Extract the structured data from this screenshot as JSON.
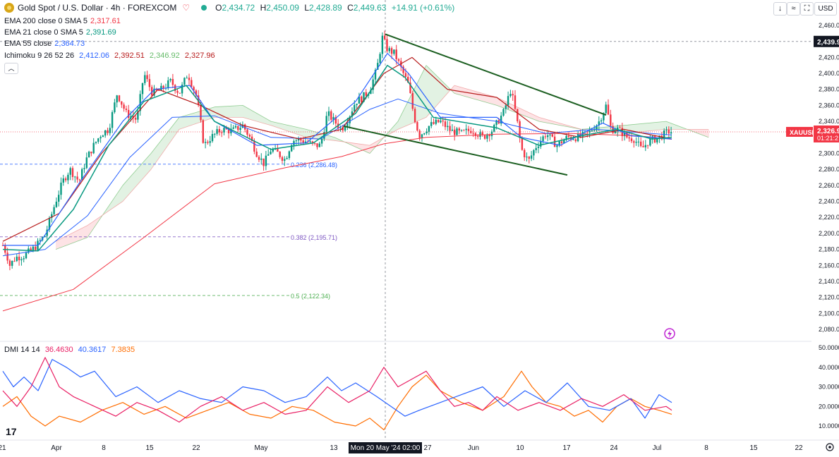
{
  "header": {
    "symbol": "Gold Spot / U.S. Dollar · 4h · FOREXCOM",
    "o_label": "O",
    "o": "2,434.72",
    "h_label": "H",
    "h": "2,450.09",
    "l_label": "L",
    "l": "2,428.89",
    "c_label": "C",
    "c": "2,449.63",
    "change": "+14.91 (+0.61%)"
  },
  "indicators": [
    {
      "label": "EMA 200 close 0 SMA 5",
      "value": "2,317.61",
      "color": "#f23645"
    },
    {
      "label": "EMA 21 close 0 SMA 5",
      "value": "2,391.69",
      "color": "#089981"
    },
    {
      "label": "EMA 55 close",
      "value": "2,364.73",
      "color": "#2962ff"
    },
    {
      "label": "Ichimoku 9 26 52 26",
      "values": [
        "2,412.06",
        "2,392.51",
        "2,346.92",
        "2,327.96"
      ],
      "colors": [
        "#2962ff",
        "#b71c1c",
        "#43a047",
        "#b71c1c"
      ]
    }
  ],
  "dmi": {
    "label": "DMI 14 14",
    "values": [
      "36.4630",
      "40.3617",
      "7.3835"
    ],
    "colors": [
      "#e91e63",
      "#2962ff",
      "#ff6d00"
    ]
  },
  "toolbar": {
    "down": "↓",
    "collapse": "≈",
    "fullscreen": "⛶",
    "currency": "USD"
  },
  "price_axis": {
    "labels": [
      "2,460.00",
      "2,440.00",
      "2,420.00",
      "2,400.00",
      "2,380.00",
      "2,360.00",
      "2,340.00",
      "2,320.00",
      "2,300.00",
      "2,280.00",
      "2,260.00",
      "2,240.00",
      "2,220.00",
      "2,200.00",
      "2,180.00",
      "2,160.00",
      "2,140.00",
      "2,120.00",
      "2,100.00",
      "2,080.00"
    ],
    "values": [
      2460,
      2440,
      2420,
      2400,
      2380,
      2360,
      2340,
      2320,
      2300,
      2280,
      2260,
      2240,
      2220,
      2200,
      2180,
      2160,
      2140,
      2120,
      2100,
      2080
    ],
    "crosshair_label": "2,439.9",
    "crosshair_value": 2439.9,
    "symbol_tag": "XAUUSD",
    "last_price": "2,326.9",
    "countdown": "01:21:2"
  },
  "dmi_axis": {
    "labels": [
      "50.0000",
      "40.0000",
      "30.0000",
      "20.0000",
      "10.0000"
    ],
    "values": [
      50,
      40,
      30,
      20,
      10
    ]
  },
  "time_axis": {
    "labels": [
      "21",
      "Apr",
      "8",
      "15",
      "22",
      "May",
      "13",
      "27",
      "Jun",
      "10",
      "17",
      "24",
      "Jul",
      "8",
      "15",
      "22"
    ],
    "bar_index": [
      -4,
      3,
      45,
      88,
      132,
      173,
      224,
      308,
      350,
      392,
      434,
      476,
      517,
      560,
      602,
      644
    ],
    "crosshair_label": "Mon 20 May '24   02:00",
    "crosshair_bar": 266
  },
  "chart_data": {
    "type": "candlestick",
    "bars_total": 290,
    "ylim": [
      2065,
      2470
    ],
    "path": [
      [
        0,
        2185
      ],
      [
        5,
        2175
      ],
      [
        10,
        2160
      ],
      [
        18,
        2170
      ],
      [
        30,
        2172
      ],
      [
        45,
        2182
      ],
      [
        60,
        2198
      ],
      [
        75,
        2240
      ],
      [
        85,
        2265
      ],
      [
        95,
        2280
      ],
      [
        108,
        2265
      ],
      [
        118,
        2292
      ],
      [
        130,
        2312
      ],
      [
        140,
        2325
      ],
      [
        150,
        2330
      ],
      [
        162,
        2375
      ],
      [
        175,
        2350
      ],
      [
        190,
        2342
      ],
      [
        200,
        2400
      ],
      [
        212,
        2375
      ],
      [
        225,
        2380
      ],
      [
        238,
        2390
      ],
      [
        250,
        2375
      ],
      [
        262,
        2400
      ],
      [
        275,
        2370
      ],
      [
        285,
        2310
      ],
      [
        295,
        2320
      ],
      [
        310,
        2330
      ],
      [
        325,
        2328
      ],
      [
        340,
        2335
      ],
      [
        350,
        2320
      ],
      [
        360,
        2300
      ],
      [
        370,
        2287
      ],
      [
        380,
        2305
      ],
      [
        390,
        2300
      ],
      [
        400,
        2292
      ],
      [
        410,
        2316
      ],
      [
        420,
        2317
      ],
      [
        430,
        2315
      ],
      [
        440,
        2310
      ],
      [
        450,
        2310
      ],
      [
        460,
        2350
      ],
      [
        470,
        2340
      ],
      [
        480,
        2330
      ],
      [
        490,
        2345
      ],
      [
        500,
        2365
      ],
      [
        510,
        2370
      ],
      [
        520,
        2380
      ],
      [
        530,
        2405
      ],
      [
        538,
        2445
      ],
      [
        545,
        2430
      ],
      [
        555,
        2425
      ],
      [
        565,
        2405
      ],
      [
        575,
        2385
      ],
      [
        582,
        2350
      ],
      [
        590,
        2322
      ],
      [
        605,
        2335
      ],
      [
        620,
        2340
      ],
      [
        635,
        2328
      ],
      [
        650,
        2325
      ],
      [
        665,
        2330
      ],
      [
        680,
        2320
      ],
      [
        695,
        2330
      ],
      [
        710,
        2352
      ],
      [
        720,
        2380
      ],
      [
        728,
        2345
      ],
      [
        735,
        2305
      ],
      [
        745,
        2290
      ],
      [
        755,
        2308
      ],
      [
        770,
        2325
      ],
      [
        785,
        2310
      ],
      [
        800,
        2320
      ],
      [
        815,
        2320
      ],
      [
        830,
        2325
      ],
      [
        845,
        2340
      ],
      [
        855,
        2360
      ],
      [
        862,
        2330
      ],
      [
        872,
        2330
      ],
      [
        885,
        2320
      ],
      [
        895,
        2318
      ],
      [
        905,
        2305
      ],
      [
        915,
        2315
      ],
      [
        930,
        2320
      ],
      [
        945,
        2328
      ],
      [
        948,
        2326.9
      ]
    ],
    "ema200": [
      [
        0,
        2103
      ],
      [
        100,
        2130
      ],
      [
        200,
        2195
      ],
      [
        300,
        2262
      ],
      [
        400,
        2282
      ],
      [
        480,
        2296
      ],
      [
        540,
        2312
      ],
      [
        600,
        2320
      ],
      [
        700,
        2324
      ],
      [
        800,
        2325
      ],
      [
        900,
        2322
      ],
      [
        948,
        2317.61
      ]
    ],
    "ema21": [
      [
        0,
        2180
      ],
      [
        50,
        2178
      ],
      [
        100,
        2230
      ],
      [
        150,
        2310
      ],
      [
        200,
        2365
      ],
      [
        260,
        2385
      ],
      [
        300,
        2340
      ],
      [
        380,
        2305
      ],
      [
        440,
        2313
      ],
      [
        500,
        2350
      ],
      [
        545,
        2410
      ],
      [
        570,
        2395
      ],
      [
        610,
        2345
      ],
      [
        700,
        2332
      ],
      [
        760,
        2310
      ],
      [
        820,
        2322
      ],
      [
        870,
        2330
      ],
      [
        920,
        2318
      ],
      [
        948,
        2320
      ]
    ],
    "ema55": [
      [
        0,
        2172
      ],
      [
        60,
        2180
      ],
      [
        120,
        2222
      ],
      [
        180,
        2295
      ],
      [
        240,
        2345
      ],
      [
        300,
        2347
      ],
      [
        380,
        2320
      ],
      [
        450,
        2318
      ],
      [
        520,
        2355
      ],
      [
        560,
        2368
      ],
      [
        620,
        2350
      ],
      [
        700,
        2340
      ],
      [
        770,
        2325
      ],
      [
        840,
        2330
      ],
      [
        948,
        2323
      ]
    ],
    "ichimoku_tenkan": [
      [
        0,
        2185
      ],
      [
        50,
        2185
      ],
      [
        110,
        2265
      ],
      [
        170,
        2340
      ],
      [
        215,
        2380
      ],
      [
        265,
        2385
      ],
      [
        300,
        2340
      ],
      [
        360,
        2310
      ],
      [
        430,
        2313
      ],
      [
        500,
        2365
      ],
      [
        545,
        2425
      ],
      [
        575,
        2400
      ],
      [
        620,
        2345
      ],
      [
        700,
        2345
      ],
      [
        735,
        2320
      ],
      [
        790,
        2310
      ],
      [
        850,
        2338
      ],
      [
        890,
        2322
      ],
      [
        948,
        2318
      ]
    ],
    "ichimoku_kijun": [
      [
        0,
        2190
      ],
      [
        80,
        2225
      ],
      [
        140,
        2300
      ],
      [
        180,
        2340
      ],
      [
        220,
        2380
      ],
      [
        280,
        2360
      ],
      [
        340,
        2335
      ],
      [
        420,
        2318
      ],
      [
        480,
        2330
      ],
      [
        540,
        2400
      ],
      [
        580,
        2420
      ],
      [
        630,
        2380
      ],
      [
        700,
        2370
      ],
      [
        760,
        2330
      ],
      [
        820,
        2320
      ],
      [
        880,
        2330
      ],
      [
        948,
        2318
      ]
    ],
    "ichimoku_span_a": [
      [
        75,
        2180
      ],
      [
        120,
        2195
      ],
      [
        170,
        2260
      ],
      [
        210,
        2300
      ],
      [
        250,
        2345
      ],
      [
        300,
        2358
      ],
      [
        340,
        2360
      ],
      [
        380,
        2340
      ],
      [
        430,
        2330
      ],
      [
        470,
        2320
      ],
      [
        520,
        2300
      ],
      [
        560,
        2340
      ],
      [
        600,
        2410
      ],
      [
        640,
        2375
      ],
      [
        700,
        2360
      ],
      [
        760,
        2340
      ],
      [
        820,
        2330
      ],
      [
        880,
        2335
      ],
      [
        940,
        2340
      ],
      [
        1000,
        2320
      ]
    ],
    "ichimoku_span_b": [
      [
        75,
        2190
      ],
      [
        120,
        2210
      ],
      [
        170,
        2240
      ],
      [
        210,
        2280
      ],
      [
        250,
        2330
      ],
      [
        300,
        2345
      ],
      [
        340,
        2345
      ],
      [
        380,
        2335
      ],
      [
        430,
        2320
      ],
      [
        470,
        2316
      ],
      [
        520,
        2310
      ],
      [
        560,
        2330
      ],
      [
        600,
        2345
      ],
      [
        640,
        2385
      ],
      [
        700,
        2370
      ],
      [
        760,
        2345
      ],
      [
        820,
        2330
      ],
      [
        880,
        2325
      ],
      [
        940,
        2330
      ],
      [
        1000,
        2330
      ]
    ],
    "trendlines": [
      {
        "from": [
          542,
          2449
        ],
        "to": [
          855,
          2348
        ]
      },
      {
        "from": [
          483,
          2334
        ],
        "to": [
          800,
          2273
        ]
      }
    ],
    "fib_levels": [
      {
        "label": "0.236 (2,286.48)",
        "value": 2286.48,
        "color": "#2962ff"
      },
      {
        "label": "0.382 (2,195.71)",
        "value": 2195.71,
        "color": "#7e57c2"
      },
      {
        "label": "0.5 (2,122.34)",
        "value": 2122.34,
        "color": "#4caf50"
      }
    ],
    "dmi_plus_path": [
      [
        0,
        28
      ],
      [
        20,
        20
      ],
      [
        40,
        30
      ],
      [
        60,
        45
      ],
      [
        80,
        30
      ],
      [
        100,
        25
      ],
      [
        130,
        20
      ],
      [
        160,
        15
      ],
      [
        190,
        22
      ],
      [
        220,
        18
      ],
      [
        250,
        12
      ],
      [
        280,
        20
      ],
      [
        310,
        25
      ],
      [
        340,
        18
      ],
      [
        370,
        22
      ],
      [
        400,
        16
      ],
      [
        430,
        18
      ],
      [
        460,
        30
      ],
      [
        490,
        22
      ],
      [
        520,
        28
      ],
      [
        540,
        40
      ],
      [
        560,
        30
      ],
      [
        580,
        34
      ],
      [
        600,
        38
      ],
      [
        620,
        28
      ],
      [
        640,
        20
      ],
      [
        660,
        22
      ],
      [
        680,
        18
      ],
      [
        700,
        25
      ],
      [
        730,
        18
      ],
      [
        760,
        22
      ],
      [
        790,
        18
      ],
      [
        820,
        24
      ],
      [
        850,
        20
      ],
      [
        880,
        26
      ],
      [
        910,
        18
      ],
      [
        940,
        20
      ],
      [
        948,
        18
      ]
    ],
    "dmi_minus_path": [
      [
        0,
        38
      ],
      [
        15,
        30
      ],
      [
        30,
        35
      ],
      [
        50,
        28
      ],
      [
        70,
        44
      ],
      [
        90,
        40
      ],
      [
        110,
        35
      ],
      [
        130,
        38
      ],
      [
        160,
        25
      ],
      [
        190,
        30
      ],
      [
        220,
        22
      ],
      [
        250,
        28
      ],
      [
        280,
        24
      ],
      [
        310,
        22
      ],
      [
        340,
        30
      ],
      [
        370,
        28
      ],
      [
        400,
        22
      ],
      [
        430,
        25
      ],
      [
        460,
        35
      ],
      [
        480,
        28
      ],
      [
        500,
        32
      ],
      [
        530,
        25
      ],
      [
        550,
        20
      ],
      [
        570,
        15
      ],
      [
        590,
        18
      ],
      [
        620,
        22
      ],
      [
        650,
        26
      ],
      [
        680,
        30
      ],
      [
        710,
        20
      ],
      [
        740,
        28
      ],
      [
        770,
        22
      ],
      [
        800,
        32
      ],
      [
        830,
        20
      ],
      [
        860,
        18
      ],
      [
        890,
        24
      ],
      [
        910,
        14
      ],
      [
        930,
        26
      ],
      [
        948,
        22
      ]
    ],
    "dmi_adx_path": [
      [
        0,
        20
      ],
      [
        20,
        25
      ],
      [
        40,
        15
      ],
      [
        60,
        10
      ],
      [
        80,
        15
      ],
      [
        110,
        12
      ],
      [
        140,
        18
      ],
      [
        170,
        22
      ],
      [
        200,
        16
      ],
      [
        230,
        20
      ],
      [
        260,
        14
      ],
      [
        290,
        18
      ],
      [
        320,
        22
      ],
      [
        350,
        16
      ],
      [
        380,
        14
      ],
      [
        410,
        20
      ],
      [
        440,
        18
      ],
      [
        470,
        12
      ],
      [
        500,
        10
      ],
      [
        520,
        14
      ],
      [
        540,
        8
      ],
      [
        560,
        20
      ],
      [
        580,
        30
      ],
      [
        600,
        36
      ],
      [
        620,
        28
      ],
      [
        650,
        22
      ],
      [
        680,
        18
      ],
      [
        710,
        25
      ],
      [
        735,
        38
      ],
      [
        750,
        30
      ],
      [
        770,
        22
      ],
      [
        790,
        20
      ],
      [
        810,
        15
      ],
      [
        830,
        18
      ],
      [
        850,
        12
      ],
      [
        870,
        20
      ],
      [
        890,
        24
      ],
      [
        910,
        20
      ],
      [
        930,
        18
      ],
      [
        948,
        16
      ]
    ]
  }
}
